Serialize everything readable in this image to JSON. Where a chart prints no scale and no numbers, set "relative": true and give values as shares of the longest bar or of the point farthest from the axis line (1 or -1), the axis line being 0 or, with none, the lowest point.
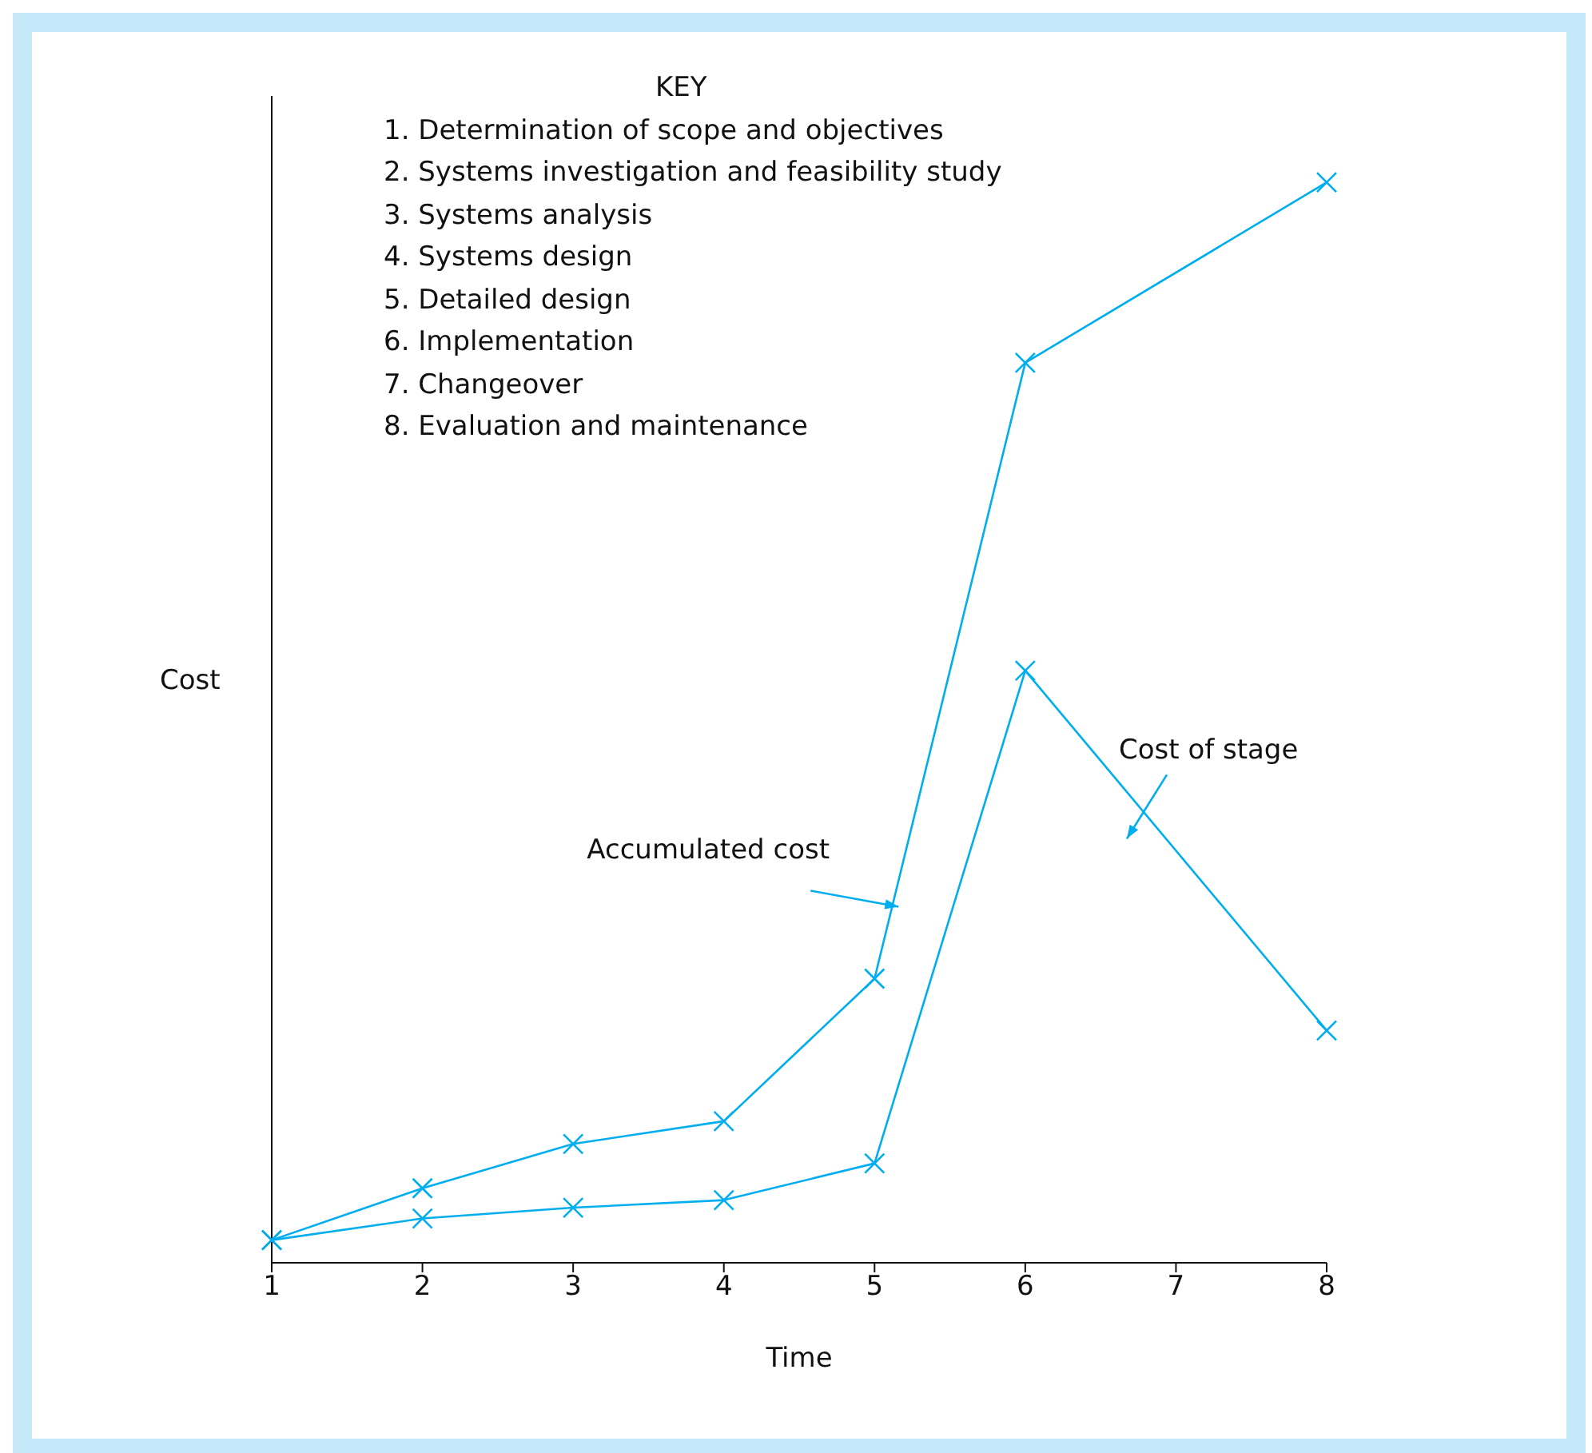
{
  "chart_data": {
    "type": "line",
    "relative": true,
    "xlabel": "Time",
    "ylabel": "Cost",
    "categories": [
      "1",
      "2",
      "3",
      "4",
      "5",
      "6",
      "7",
      "8"
    ],
    "marker": "cross",
    "series": [
      {
        "name": "Accumulated cost",
        "color": "#00aeef",
        "values": [
          0.021,
          0.069,
          0.11,
          0.131,
          0.263,
          0.833,
          null,
          1
        ]
      },
      {
        "name": "Cost of stage",
        "color": "#00aeef",
        "values": [
          0.021,
          0.041,
          0.051,
          0.058,
          0.092,
          0.548,
          null,
          0.215
        ]
      }
    ],
    "annotations": [
      "KEY",
      "1. Determination of scope and objectives",
      "2. Systems investigation and feasibility study",
      "3. Systems analysis",
      "4. Systems design",
      "5. Detailed design",
      "6. Implementation",
      "7. Changeover",
      "8. Evaluation and maintenance"
    ]
  }
}
